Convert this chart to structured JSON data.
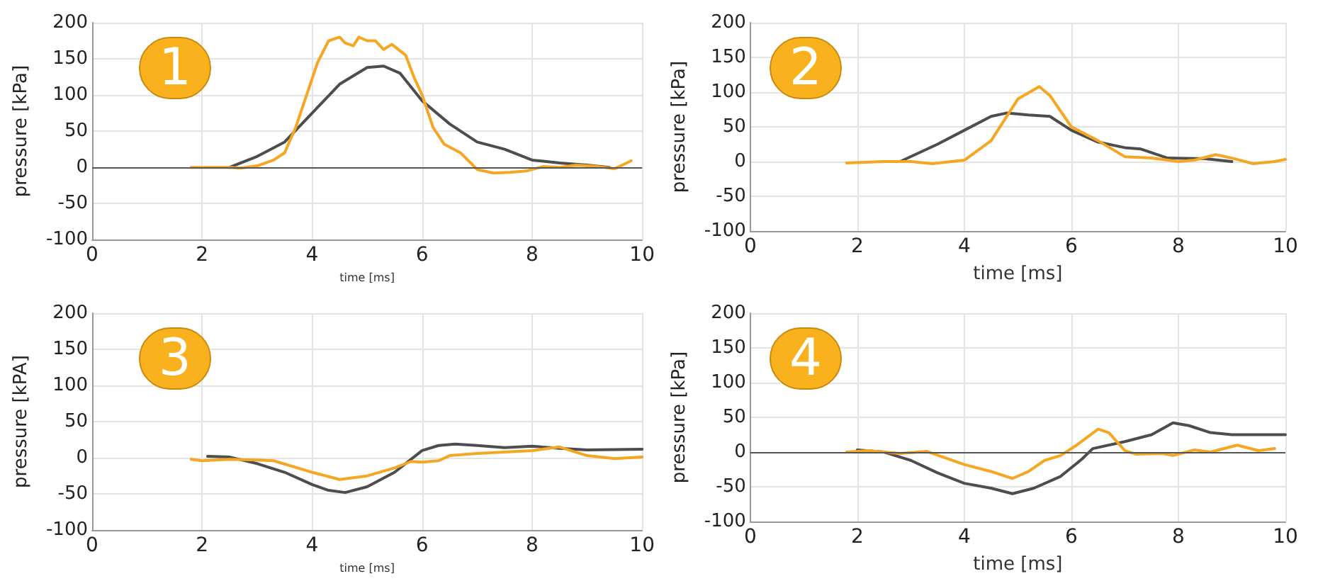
{
  "chart_data": [
    {
      "type": "line",
      "title": "1",
      "xlabel": "time [ms]",
      "ylabel": "pressure [kPa]",
      "xlim": [
        0,
        10
      ],
      "xticks": [
        0,
        2,
        4,
        6,
        8,
        10
      ],
      "ylim": [
        -100,
        200
      ],
      "yticks": [
        -100,
        -50,
        0,
        50,
        100,
        150,
        200
      ],
      "grid": true,
      "marker": "none",
      "line_style": "solid",
      "ref_lines": [
        {
          "axis": "y",
          "value": 0,
          "color": "#555555"
        }
      ],
      "series": [
        {
          "color": "#4d4d4d",
          "x": [
            2.5,
            3,
            3.5,
            4,
            4.5,
            5,
            5.3,
            5.6,
            6,
            6.5,
            7,
            7.5,
            8,
            8.5,
            9,
            9.4
          ],
          "values": [
            0,
            15,
            35,
            75,
            115,
            138,
            140,
            130,
            92,
            60,
            35,
            25,
            10,
            6,
            3,
            0
          ]
        },
        {
          "color": "#f5a623",
          "x": [
            1.8,
            2.5,
            2.7,
            3,
            3.3,
            3.5,
            3.7,
            3.9,
            4.1,
            4.3,
            4.5,
            4.6,
            4.75,
            4.85,
            5,
            5.15,
            5.3,
            5.45,
            5.7,
            5.85,
            6,
            6.2,
            6.4,
            6.7,
            7,
            7.3,
            7.6,
            7.9,
            8.2,
            8.5,
            8.8,
            9.2,
            9.5,
            9.8
          ],
          "values": [
            0,
            0,
            -1,
            2,
            10,
            20,
            55,
            100,
            145,
            175,
            180,
            172,
            168,
            180,
            175,
            175,
            163,
            170,
            155,
            125,
            100,
            55,
            32,
            20,
            -3,
            -8,
            -7,
            -5,
            1,
            0,
            3,
            1,
            -2,
            9
          ]
        }
      ]
    },
    {
      "type": "line",
      "title": "2",
      "xlabel": "time [ms]",
      "ylabel": "pressure [kPa]",
      "xlim": [
        0,
        10
      ],
      "xticks": [
        0,
        2,
        4,
        6,
        8,
        10
      ],
      "ylim": [
        -100,
        200
      ],
      "yticks": [
        -100,
        -50,
        0,
        50,
        100,
        150,
        200
      ],
      "grid": true,
      "marker": "none",
      "line_style": "solid",
      "series": [
        {
          "color": "#4d4d4d",
          "x": [
            2.8,
            3.5,
            4,
            4.5,
            4.8,
            5.2,
            5.6,
            6,
            6.5,
            7,
            7.3,
            7.8,
            8.5,
            9
          ],
          "values": [
            0,
            25,
            45,
            65,
            70,
            67,
            65,
            45,
            28,
            20,
            18,
            5,
            4,
            0
          ]
        },
        {
          "color": "#f5a623",
          "x": [
            1.8,
            2.5,
            3,
            3.4,
            4,
            4.5,
            5,
            5.4,
            5.6,
            6,
            6.5,
            7,
            7.5,
            8,
            8.3,
            8.7,
            9,
            9.4,
            9.8,
            10
          ],
          "values": [
            -2,
            0,
            0,
            -3,
            2,
            30,
            90,
            108,
            95,
            50,
            30,
            7,
            5,
            0,
            2,
            10,
            5,
            -3,
            0,
            3
          ]
        }
      ]
    },
    {
      "type": "line",
      "title": "3",
      "xlabel": "time [ms]",
      "ylabel": "pressure [kPA]",
      "xlim": [
        0,
        10
      ],
      "xticks": [
        0,
        2,
        4,
        6,
        8,
        10
      ],
      "ylim": [
        -100,
        200
      ],
      "yticks": [
        -100,
        -50,
        0,
        50,
        100,
        150,
        200
      ],
      "grid": true,
      "marker": "none",
      "line_style": "solid",
      "series": [
        {
          "color": "#4d4d4d",
          "x": [
            2.1,
            2.5,
            3,
            3.5,
            4,
            4.3,
            4.6,
            5,
            5.5,
            6,
            6.3,
            6.6,
            7,
            7.5,
            8,
            8.5,
            9,
            10
          ],
          "values": [
            2,
            1,
            -8,
            -20,
            -37,
            -45,
            -48,
            -40,
            -20,
            10,
            17,
            19,
            17,
            14,
            16,
            13,
            11,
            12
          ]
        },
        {
          "color": "#f5a623",
          "x": [
            1.8,
            2,
            2.5,
            3,
            3.3,
            4,
            4.5,
            5,
            5.5,
            5.8,
            6,
            6.3,
            6.5,
            7,
            7.5,
            8,
            8.5,
            8.7,
            9,
            9.5,
            10
          ],
          "values": [
            -2,
            -4,
            -2,
            -3,
            -4,
            -20,
            -30,
            -25,
            -14,
            -5,
            -6,
            -4,
            3,
            6,
            8,
            10,
            15,
            10,
            3,
            -1,
            1
          ]
        }
      ]
    },
    {
      "type": "line",
      "title": "4",
      "xlabel": "time [ms]",
      "ylabel": "pressure [kPa]",
      "xlim": [
        0,
        10
      ],
      "xticks": [
        0,
        2,
        4,
        6,
        8,
        10
      ],
      "ylim": [
        -100,
        200
      ],
      "yticks": [
        -100,
        -50,
        0,
        50,
        100,
        150,
        200
      ],
      "grid": true,
      "marker": "none",
      "line_style": "solid",
      "ref_lines": [
        {
          "axis": "y",
          "value": 0,
          "color": "#555555"
        }
      ],
      "series": [
        {
          "color": "#4d4d4d",
          "x": [
            2,
            2.5,
            3,
            3.5,
            4,
            4.5,
            4.9,
            5.3,
            5.8,
            6.2,
            6.4,
            7,
            7.5,
            7.9,
            8.2,
            8.6,
            9,
            10
          ],
          "values": [
            3,
            0,
            -12,
            -30,
            -45,
            -52,
            -60,
            -52,
            -35,
            -10,
            5,
            15,
            25,
            42,
            38,
            28,
            25,
            25
          ]
        },
        {
          "color": "#f5a623",
          "x": [
            1.8,
            2.2,
            2.8,
            3.3,
            4,
            4.5,
            4.9,
            5.2,
            5.5,
            5.8,
            6.1,
            6.5,
            6.7,
            7,
            7.2,
            7.7,
            7.9,
            8.3,
            8.6,
            9.1,
            9.5,
            9.8
          ],
          "values": [
            0,
            2,
            -2,
            1,
            -18,
            -28,
            -38,
            -28,
            -12,
            -5,
            10,
            33,
            28,
            2,
            -3,
            -2,
            -5,
            3,
            0,
            10,
            2,
            5
          ]
        }
      ]
    }
  ]
}
